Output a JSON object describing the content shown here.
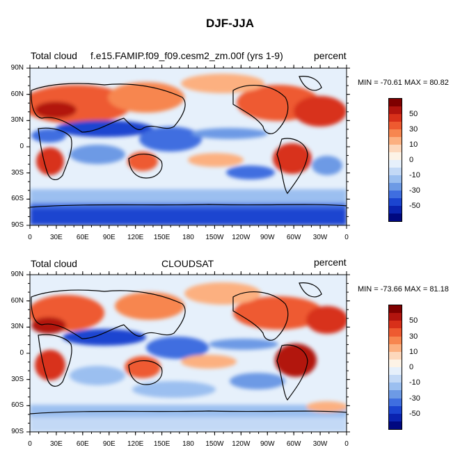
{
  "figure_title": "DJF-JJA",
  "panels": [
    {
      "left_title": "Total cloud",
      "center_title": "f.e15.FAMIP.f09_f09.cesm2_zm.00f (yrs 1-9)",
      "right_title": "percent",
      "stats": "MIN = -70.61 MAX =  80.82"
    },
    {
      "left_title": "Total cloud",
      "center_title": "CLOUDSAT",
      "right_title": "percent",
      "stats": "MIN = -73.66 MAX =  81.18"
    }
  ],
  "lat_ticks": [
    "90N",
    "60N",
    "30N",
    "0",
    "30S",
    "60S",
    "90S"
  ],
  "lon_ticks": [
    "0",
    "30E",
    "60E",
    "90E",
    "120E",
    "150E",
    "180",
    "150W",
    "120W",
    "90W",
    "60W",
    "30W",
    "0"
  ],
  "colorbar": {
    "labels": [
      "50",
      "30",
      "10",
      "0",
      "-10",
      "-30",
      "-50"
    ],
    "colors": [
      "#7f0000",
      "#b2140e",
      "#d8301a",
      "#ee5a30",
      "#f7864f",
      "#fcb080",
      "#fdd8bc",
      "#fdf3e6",
      "#e6f0fb",
      "#c3d9f6",
      "#9bbff0",
      "#6d9ae5",
      "#3f6ee0",
      "#1b44d0",
      "#0a23b0",
      "#000880"
    ]
  }
}
